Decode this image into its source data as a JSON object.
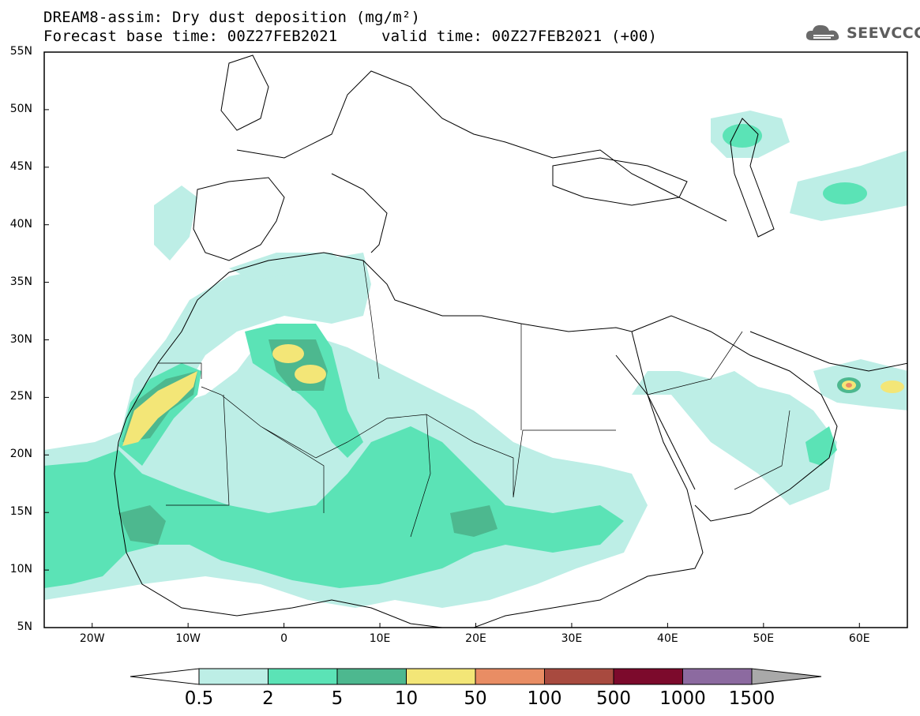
{
  "title": {
    "line1": "DREAM8-assim: Dry dust deposition (mg/m²)",
    "line2": "Forecast base time: 00Z27FEB2021",
    "line3": "valid time: 00Z27FEB2021 (+00)"
  },
  "logo": {
    "text": "SEEVCCC",
    "icon": "cloud-icon"
  },
  "map": {
    "projection": "lat-lon",
    "lon_range": [
      -25,
      65
    ],
    "lat_range": [
      5,
      55
    ],
    "lat_ticks": [
      "55N",
      "50N",
      "45N",
      "40N",
      "35N",
      "30N",
      "25N",
      "20N",
      "15N",
      "10N",
      "5N"
    ],
    "lon_ticks": [
      "20W",
      "10W",
      "0",
      "10E",
      "20E",
      "30E",
      "40E",
      "50E",
      "60E"
    ]
  },
  "colorbar": {
    "levels": [
      "0.5",
      "2",
      "5",
      "10",
      "50",
      "100",
      "500",
      "1000",
      "1500"
    ],
    "colors": [
      "#ffffff",
      "#bdeee6",
      "#5be3b6",
      "#4db88f",
      "#f3e677",
      "#e98d64",
      "#a84a3f",
      "#7c0a2c",
      "#8c6aa0",
      "#a9a9a9"
    ]
  }
}
